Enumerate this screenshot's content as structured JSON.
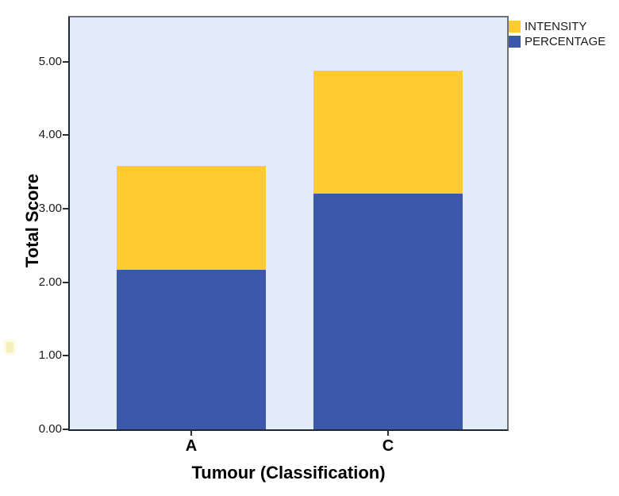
{
  "figure": {
    "background": "#ffffff"
  },
  "chart_data": {
    "type": "bar",
    "stacked": true,
    "title": "",
    "xlabel": "Tumour (Classification)",
    "ylabel": "Total Score",
    "categories": [
      "A",
      "C"
    ],
    "series": [
      {
        "name": "PERCENTAGE",
        "color": "#3C58AA",
        "values": [
          2.17,
          3.21
        ]
      },
      {
        "name": "INTENSITY",
        "color": "#FECB32",
        "values": [
          1.41,
          1.67
        ]
      }
    ],
    "stack_totals": [
      3.58,
      4.88
    ],
    "ylim": [
      0,
      5.6
    ],
    "yticks": [
      {
        "value": 0,
        "label": "0.00"
      },
      {
        "value": 1,
        "label": "1.00"
      },
      {
        "value": 2,
        "label": "2.00"
      },
      {
        "value": 3,
        "label": "3.00"
      },
      {
        "value": 4,
        "label": "4.00"
      },
      {
        "value": 5,
        "label": "5.00"
      }
    ],
    "legend": [
      {
        "label": "INTENSITY",
        "color": "#FECB32"
      },
      {
        "label": "PERCENTAGE",
        "color": "#3C58AA"
      }
    ],
    "legend_position": "top-right-outside",
    "grid": false,
    "plot_background": "#E1ECF8"
  }
}
